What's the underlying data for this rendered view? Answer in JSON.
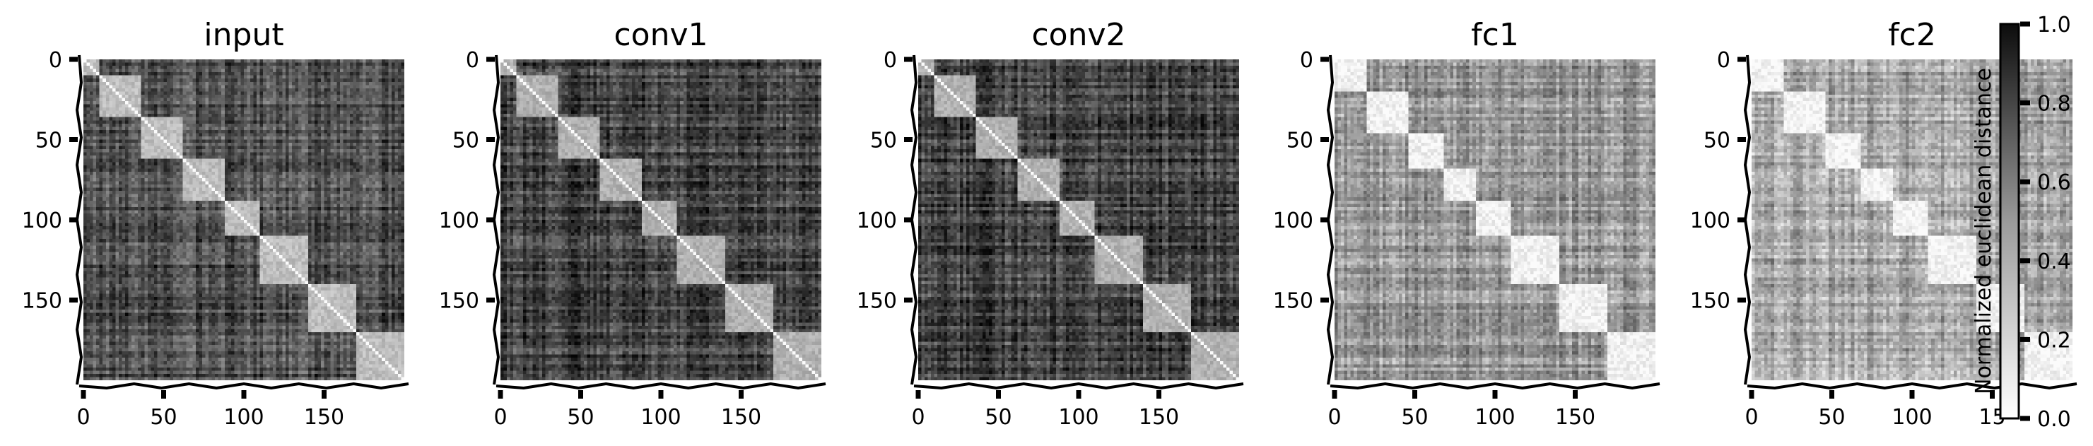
{
  "chart_data": [
    {
      "type": "heatmap",
      "title": "input",
      "xticks": [
        0,
        50,
        100,
        150
      ],
      "yticks": [
        0,
        50,
        100,
        150
      ],
      "xlim": [
        0,
        200
      ],
      "ylim": [
        200,
        0
      ],
      "matrix_size": 200,
      "block_boundaries": [
        0,
        10,
        35,
        62,
        88,
        110,
        140,
        170,
        200
      ],
      "within_block_distance": 0.25,
      "between_block_distance": 0.7
    },
    {
      "type": "heatmap",
      "title": "conv1",
      "xticks": [
        0,
        50,
        100,
        150
      ],
      "yticks": [
        0,
        50,
        100,
        150
      ],
      "xlim": [
        0,
        200
      ],
      "ylim": [
        200,
        0
      ],
      "matrix_size": 200,
      "block_boundaries": [
        0,
        10,
        35,
        62,
        88,
        110,
        140,
        170,
        200
      ],
      "within_block_distance": 0.3,
      "between_block_distance": 0.75
    },
    {
      "type": "heatmap",
      "title": "conv2",
      "xticks": [
        0,
        50,
        100,
        150
      ],
      "yticks": [
        0,
        50,
        100,
        150
      ],
      "xlim": [
        0,
        200
      ],
      "ylim": [
        200,
        0
      ],
      "matrix_size": 200,
      "block_boundaries": [
        0,
        10,
        35,
        62,
        88,
        110,
        140,
        170,
        200
      ],
      "within_block_distance": 0.3,
      "between_block_distance": 0.75
    },
    {
      "type": "heatmap",
      "title": "fc1",
      "xticks": [
        0,
        50,
        100,
        150
      ],
      "yticks": [
        0,
        50,
        100,
        150
      ],
      "xlim": [
        0,
        200
      ],
      "ylim": [
        200,
        0
      ],
      "matrix_size": 200,
      "block_boundaries": [
        0,
        20,
        45,
        68,
        88,
        110,
        140,
        170,
        200
      ],
      "within_block_distance": 0.05,
      "between_block_distance": 0.4
    },
    {
      "type": "heatmap",
      "title": "fc2",
      "xticks": [
        0,
        50,
        100
      ],
      "xticks_extra": [
        "15"
      ],
      "yticks": [
        0,
        50,
        100,
        150
      ],
      "xlim": [
        0,
        200
      ],
      "ylim": [
        200,
        0
      ],
      "matrix_size": 200,
      "block_boundaries": [
        0,
        20,
        45,
        68,
        88,
        110,
        140,
        170,
        200
      ],
      "within_block_distance": 0.04,
      "between_block_distance": 0.35
    }
  ],
  "colorbar": {
    "label": "Normalized euclidean distance",
    "range": [
      0.0,
      1.0
    ],
    "ticks": [
      "0.0",
      "0.2",
      "0.4",
      "0.6",
      "0.8",
      "1.0"
    ],
    "colormap": "Greys"
  }
}
